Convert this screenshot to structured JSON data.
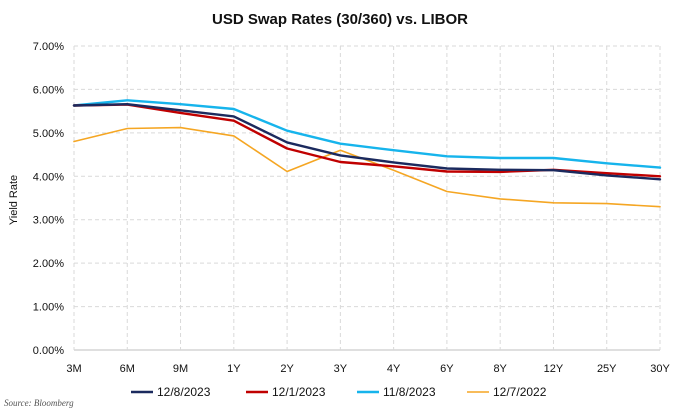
{
  "chart_data": {
    "type": "line",
    "title": "USD Swap Rates (30/360) vs. LIBOR",
    "ylabel": "Yield Rate",
    "xlabel": "",
    "categories": [
      "3M",
      "6M",
      "9M",
      "1Y",
      "2Y",
      "3Y",
      "4Y",
      "6Y",
      "8Y",
      "12Y",
      "25Y",
      "30Y"
    ],
    "ylim": [
      0,
      7
    ],
    "yticks": [
      "0.00%",
      "1.00%",
      "2.00%",
      "3.00%",
      "4.00%",
      "5.00%",
      "6.00%",
      "7.00%"
    ],
    "grid": true,
    "legend_position": "bottom",
    "series": [
      {
        "name": "12/8/2023",
        "color": "#1b2a5e",
        "values": [
          5.63,
          5.66,
          5.52,
          5.38,
          4.78,
          4.48,
          4.32,
          4.18,
          4.15,
          4.14,
          4.02,
          3.93
        ]
      },
      {
        "name": "12/1/2023",
        "color": "#c00000",
        "values": [
          5.63,
          5.65,
          5.46,
          5.28,
          4.64,
          4.33,
          4.23,
          4.11,
          4.1,
          4.15,
          4.07,
          4.0
        ]
      },
      {
        "name": "11/8/2023",
        "color": "#16b4ec",
        "values": [
          5.63,
          5.75,
          5.66,
          5.55,
          5.05,
          4.75,
          4.6,
          4.46,
          4.42,
          4.42,
          4.3,
          4.2
        ]
      },
      {
        "name": "12/7/2022",
        "color": "#f5a623",
        "values": [
          4.8,
          5.1,
          5.12,
          4.93,
          4.11,
          4.6,
          4.14,
          3.65,
          3.48,
          3.39,
          3.37,
          3.3
        ]
      }
    ]
  },
  "source": "Source: Bloomberg"
}
